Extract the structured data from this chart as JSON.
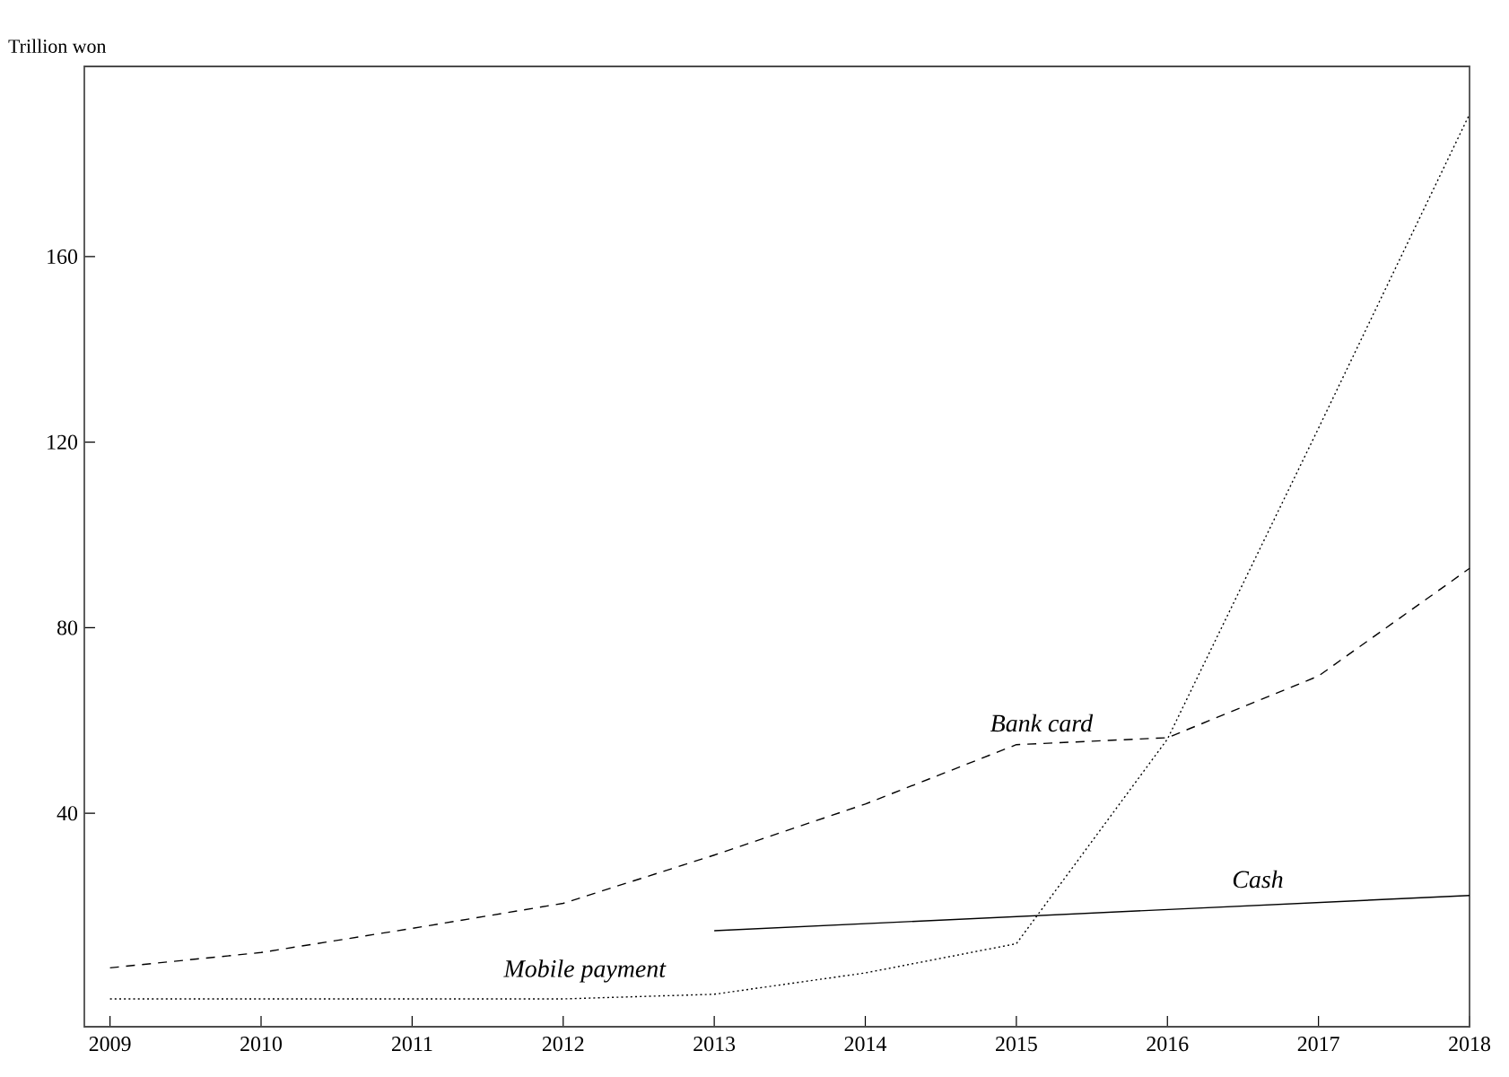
{
  "chart_data": {
    "type": "line",
    "ylabel": "Trillion won",
    "xlim": [
      2008.83,
      2018
    ],
    "ylim": [
      -6,
      201
    ],
    "xticks": [
      2009,
      2010,
      2011,
      2012,
      2013,
      2014,
      2015,
      2016,
      2017,
      2018
    ],
    "yticks": [
      40,
      80,
      120,
      160
    ],
    "grid": false,
    "legend": false,
    "marker": "none",
    "series": [
      {
        "name": "Bank card",
        "color": "#000000",
        "line_style": "dashed",
        "x": [
          2009,
          2010,
          2011,
          2012,
          2013,
          2014,
          2015,
          2016,
          2017,
          2018
        ],
        "values": [
          6.7,
          10,
          15.2,
          20.6,
          31,
          42,
          54.8,
          56.3,
          69.6,
          92.8
        ]
      },
      {
        "name": "Mobile payment",
        "color": "#000000",
        "line_style": "dotted",
        "x": [
          2009,
          2010,
          2011,
          2012,
          2013,
          2014,
          2015,
          2016,
          2017,
          2018
        ],
        "values": [
          0,
          0,
          0,
          0,
          1,
          5.6,
          11.9,
          56,
          123,
          190.7
        ]
      },
      {
        "name": "Cash",
        "color": "#000000",
        "line_style": "solid",
        "x": [
          2013,
          2018
        ],
        "values": [
          14.7,
          22.3
        ]
      }
    ]
  }
}
